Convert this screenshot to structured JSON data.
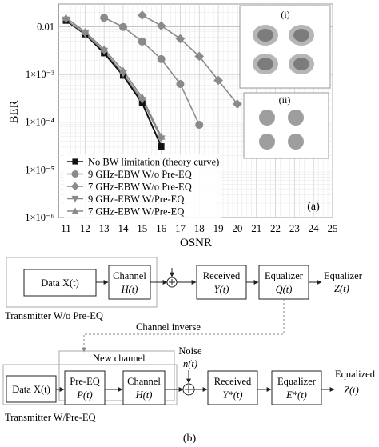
{
  "chart_data": {
    "type": "scatter",
    "panel_label": "(a)",
    "xlabel": "OSNR",
    "ylabel": "BER",
    "x_ticks": [
      "11",
      "12",
      "13",
      "14",
      "15",
      "16",
      "17",
      "18",
      "19",
      "20",
      "21",
      "22",
      "23",
      "24",
      "25"
    ],
    "y_ticks": [
      "0.01",
      "1×10⁻³",
      "1×10⁻⁴",
      "1×10⁻⁵",
      "1×10⁻⁶"
    ],
    "xlim": [
      10.6,
      25
    ],
    "ylim": [
      1e-06,
      0.03
    ],
    "y_scale": "log",
    "grid": true,
    "legend_position": "bottom-left",
    "series": [
      {
        "name": "No BW limitation (theory curve)",
        "marker": "square",
        "color": "#111111",
        "x": [
          11,
          12,
          13,
          14,
          15,
          16
        ],
        "y": [
          0.0135,
          0.007,
          0.0028,
          0.00095,
          0.00025,
          3.1e-05
        ]
      },
      {
        "name": "9 GHz-EBW W/o Pre-EQ",
        "marker": "circle",
        "color": "#8a8a8a",
        "x": [
          13,
          14,
          15,
          16,
          17,
          18
        ],
        "y": [
          0.0155,
          0.0099,
          0.0049,
          0.0021,
          0.00063,
          8.8e-05
        ]
      },
      {
        "name": "7 GHz-EBW W/o Pre-EQ",
        "marker": "diamond",
        "color": "#8a8a8a",
        "x": [
          15,
          16,
          17,
          18,
          19,
          20
        ],
        "y": [
          0.0175,
          0.0105,
          0.0056,
          0.0024,
          0.00075,
          0.00024
        ]
      },
      {
        "name": "9 GHz-EBW W/Pre-EQ",
        "marker": "triangle-down",
        "color": "#8a8a8a",
        "x": [
          11,
          12,
          13,
          14,
          15,
          16
        ],
        "y": [
          0.014,
          0.0072,
          0.0031,
          0.00105,
          0.00029,
          4.5e-05
        ]
      },
      {
        "name": "7 GHz-EBW W/Pre-EQ",
        "marker": "triangle-up",
        "color": "#8a8a8a",
        "x": [
          11,
          12,
          13,
          14,
          15,
          16
        ],
        "y": [
          0.0155,
          0.0078,
          0.0034,
          0.0012,
          0.00033,
          5e-05
        ]
      }
    ],
    "insets": [
      {
        "label": "(i)",
        "content": "16-point constellation with four fuzzy clusters"
      },
      {
        "label": "(ii)",
        "content": "16-point constellation with four clusters"
      }
    ]
  },
  "diagram": {
    "panel_label": "(b)",
    "top": {
      "data": "Data X(t)",
      "channel_line1": "Channel",
      "channel_line2": "H(t)",
      "received_line1": "Received",
      "received_line2": "Y(t)",
      "equalizer_line1": "Equalizer",
      "equalizer_line2": "Q(t)",
      "output_line1": "Equalizer",
      "output_line2": "Z(t)",
      "caption": "Transmitter W/o Pre-EQ"
    },
    "channel_inverse": "Channel inverse",
    "bottom": {
      "new_channel": "New channel",
      "noise_line1": "Noise",
      "noise_line2": "n(t)",
      "data": "Data X(t)",
      "preeq_line1": "Pre-EQ",
      "preeq_line2": "P(t)",
      "channel_line1": "Channel",
      "channel_line2": "H(t)",
      "received_line1": "Received",
      "received_line2": "Y*(t)",
      "equalizer_line1": "Equalizer",
      "equalizer_line2": "E*(t)",
      "output_line1": "Equalized",
      "output_line2": "Z(t)",
      "caption": "Transmitter W/Pre-EQ"
    }
  }
}
